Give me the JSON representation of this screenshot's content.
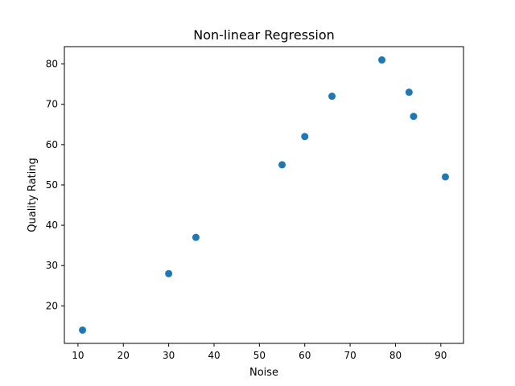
{
  "chart_data": {
    "type": "scatter",
    "title": "Non-linear Regression",
    "xlabel": "Noise",
    "ylabel": "Quality Rating",
    "xlim": [
      7,
      95
    ],
    "ylim": [
      10.7,
      84.3
    ],
    "xticks": [
      10,
      20,
      30,
      40,
      50,
      60,
      70,
      80,
      90
    ],
    "yticks": [
      20,
      30,
      40,
      50,
      60,
      70,
      80
    ],
    "grid": false,
    "marker_color": "#1f77b4",
    "points": [
      {
        "x": 11,
        "y": 14
      },
      {
        "x": 30,
        "y": 28
      },
      {
        "x": 36,
        "y": 37
      },
      {
        "x": 55,
        "y": 55
      },
      {
        "x": 60,
        "y": 62
      },
      {
        "x": 66,
        "y": 72
      },
      {
        "x": 77,
        "y": 81
      },
      {
        "x": 83,
        "y": 73
      },
      {
        "x": 84,
        "y": 67
      },
      {
        "x": 91,
        "y": 52
      }
    ]
  }
}
